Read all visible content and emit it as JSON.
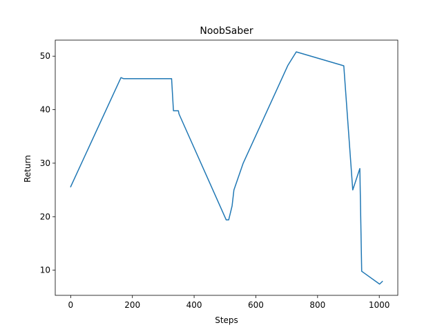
{
  "chart_data": {
    "type": "line",
    "title": "NoobSaber",
    "xlabel": "Steps",
    "ylabel": "Return",
    "xlim": [
      -50,
      1060
    ],
    "ylim": [
      5.3,
      53
    ],
    "xticks": [
      0,
      200,
      400,
      600,
      800,
      1000
    ],
    "yticks": [
      10,
      20,
      30,
      40,
      50
    ],
    "grid": false,
    "series": [
      {
        "color": "#1f77b4",
        "x": [
          0,
          163,
          171,
          327,
          333,
          349,
          351,
          504,
          512,
          523,
          529,
          553,
          559,
          704,
          731,
          885,
          914,
          937,
          943,
          1001,
          1010
        ],
        "y": [
          25.6,
          46.0,
          45.8,
          45.8,
          39.8,
          39.8,
          39.2,
          19.4,
          19.4,
          22.0,
          25.0,
          29.0,
          30.0,
          48.3,
          50.8,
          48.2,
          25.0,
          29.0,
          9.8,
          7.4,
          7.9
        ]
      }
    ]
  }
}
